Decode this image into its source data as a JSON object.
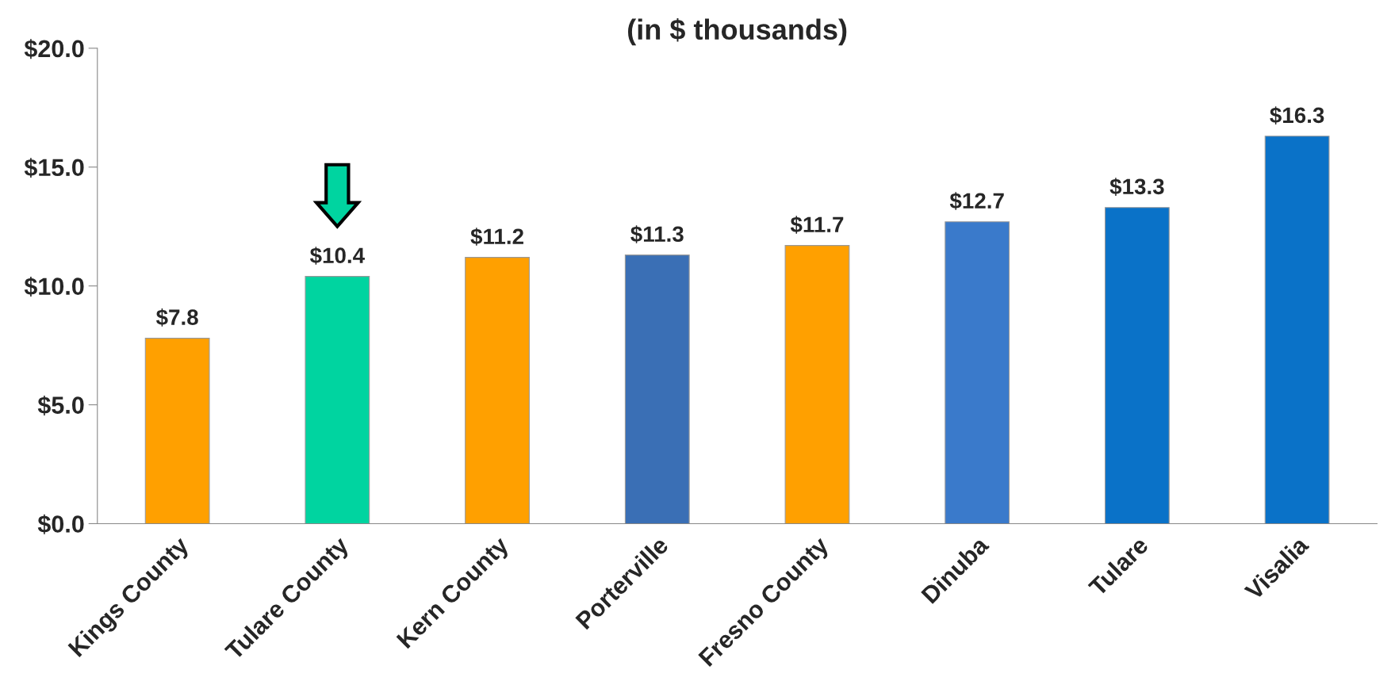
{
  "chart_data": {
    "type": "bar",
    "title": "(in $ thousands)",
    "categories": [
      "Kings County",
      "Tulare County",
      "Kern County",
      "Porterville",
      "Fresno County",
      "Dinuba",
      "Tulare",
      "Visalia"
    ],
    "values": [
      7.8,
      10.4,
      11.2,
      11.3,
      11.7,
      12.7,
      13.3,
      16.3
    ],
    "colors": [
      "#ffa000",
      "#00d4a0",
      "#ffa000",
      "#3a6fb5",
      "#ffa000",
      "#3a7acb",
      "#0a72c8",
      "#0a72c8"
    ],
    "value_labels": [
      "$7.8",
      "$10.4",
      "$11.2",
      "$11.3",
      "$11.7",
      "$12.7",
      "$13.3",
      "$16.3"
    ],
    "ylim": [
      0,
      20
    ],
    "yticks": [
      {
        "value": 0,
        "label": "$0.0"
      },
      {
        "value": 5,
        "label": "$5.0"
      },
      {
        "value": 10,
        "label": "$10.0"
      },
      {
        "value": 15,
        "label": "$15.0"
      },
      {
        "value": 20,
        "label": "$20.0"
      }
    ],
    "grid": false,
    "legend": false
  }
}
